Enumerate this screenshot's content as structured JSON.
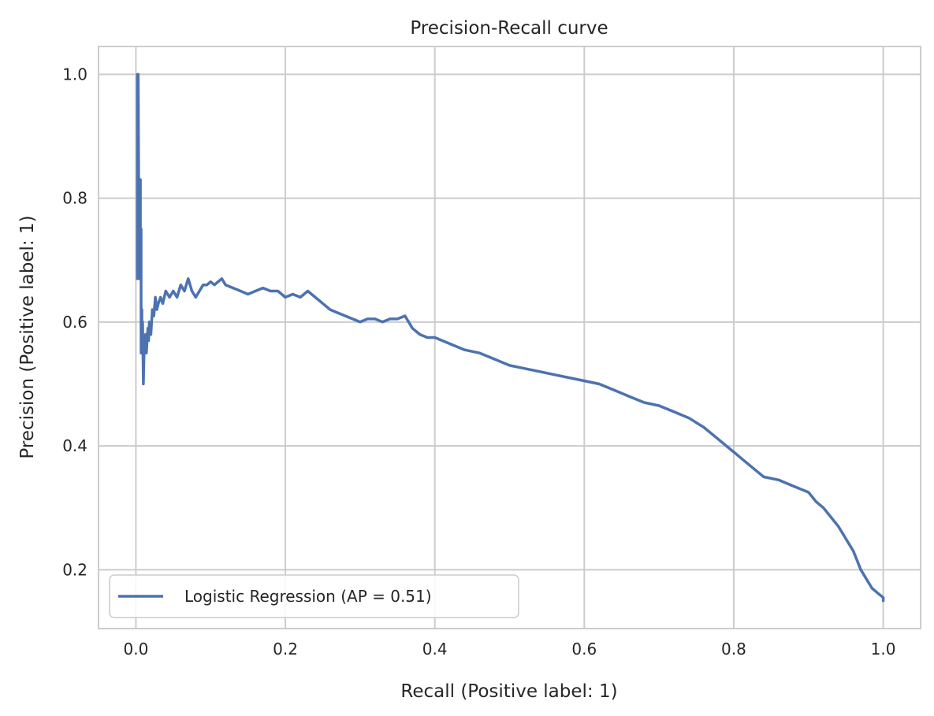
{
  "chart_data": {
    "type": "line",
    "title": "Precision-Recall curve",
    "xlabel": "Recall (Positive label: 1)",
    "ylabel": "Precision (Positive label: 1)",
    "xlim": [
      -0.05,
      1.05
    ],
    "ylim": [
      0.105,
      1.045
    ],
    "xticks": [
      0.0,
      0.2,
      0.4,
      0.6,
      0.8,
      1.0
    ],
    "yticks": [
      0.2,
      0.4,
      0.6,
      0.8,
      1.0
    ],
    "grid": true,
    "legend_position": "lower-left",
    "colors": {
      "series": "#4c72b0",
      "grid": "#cccccc",
      "spine": "#cccccc",
      "text": "#262626"
    },
    "series": [
      {
        "name": "Logistic Regression (AP = 0.51)",
        "x": [
          0.002,
          0.002,
          0.003,
          0.004,
          0.004,
          0.005,
          0.005,
          0.006,
          0.006,
          0.007,
          0.007,
          0.008,
          0.008,
          0.009,
          0.01,
          0.011,
          0.012,
          0.013,
          0.014,
          0.016,
          0.017,
          0.018,
          0.02,
          0.022,
          0.024,
          0.026,
          0.028,
          0.03,
          0.033,
          0.036,
          0.04,
          0.045,
          0.05,
          0.055,
          0.06,
          0.065,
          0.07,
          0.075,
          0.08,
          0.085,
          0.09,
          0.095,
          0.1,
          0.105,
          0.11,
          0.115,
          0.12,
          0.13,
          0.14,
          0.15,
          0.16,
          0.17,
          0.18,
          0.19,
          0.2,
          0.21,
          0.22,
          0.23,
          0.24,
          0.25,
          0.26,
          0.27,
          0.28,
          0.29,
          0.3,
          0.31,
          0.32,
          0.33,
          0.34,
          0.35,
          0.36,
          0.365,
          0.37,
          0.38,
          0.39,
          0.4,
          0.42,
          0.44,
          0.46,
          0.48,
          0.5,
          0.52,
          0.54,
          0.56,
          0.58,
          0.6,
          0.62,
          0.64,
          0.66,
          0.68,
          0.7,
          0.72,
          0.74,
          0.76,
          0.78,
          0.79,
          0.8,
          0.81,
          0.82,
          0.84,
          0.86,
          0.88,
          0.9,
          0.91,
          0.92,
          0.93,
          0.94,
          0.95,
          0.96,
          0.965,
          0.97,
          0.975,
          0.98,
          0.985,
          0.99,
          0.995,
          1.0,
          1.0
        ],
        "y": [
          1.0,
          0.67,
          1.0,
          0.75,
          0.67,
          0.8,
          0.7,
          0.83,
          0.71,
          0.75,
          0.55,
          0.62,
          0.58,
          0.6,
          0.5,
          0.55,
          0.57,
          0.58,
          0.55,
          0.59,
          0.57,
          0.6,
          0.58,
          0.62,
          0.61,
          0.64,
          0.62,
          0.63,
          0.64,
          0.63,
          0.65,
          0.64,
          0.65,
          0.64,
          0.66,
          0.65,
          0.67,
          0.65,
          0.64,
          0.65,
          0.66,
          0.66,
          0.665,
          0.66,
          0.665,
          0.67,
          0.66,
          0.655,
          0.65,
          0.645,
          0.65,
          0.655,
          0.65,
          0.65,
          0.64,
          0.645,
          0.64,
          0.65,
          0.64,
          0.63,
          0.62,
          0.615,
          0.61,
          0.605,
          0.6,
          0.605,
          0.605,
          0.6,
          0.605,
          0.605,
          0.61,
          0.6,
          0.59,
          0.58,
          0.575,
          0.575,
          0.565,
          0.555,
          0.55,
          0.54,
          0.53,
          0.525,
          0.52,
          0.515,
          0.51,
          0.505,
          0.5,
          0.49,
          0.48,
          0.47,
          0.465,
          0.455,
          0.445,
          0.43,
          0.41,
          0.4,
          0.39,
          0.38,
          0.37,
          0.35,
          0.345,
          0.335,
          0.325,
          0.31,
          0.3,
          0.285,
          0.27,
          0.25,
          0.23,
          0.215,
          0.2,
          0.19,
          0.18,
          0.17,
          0.165,
          0.16,
          0.155,
          0.15
        ]
      }
    ]
  }
}
